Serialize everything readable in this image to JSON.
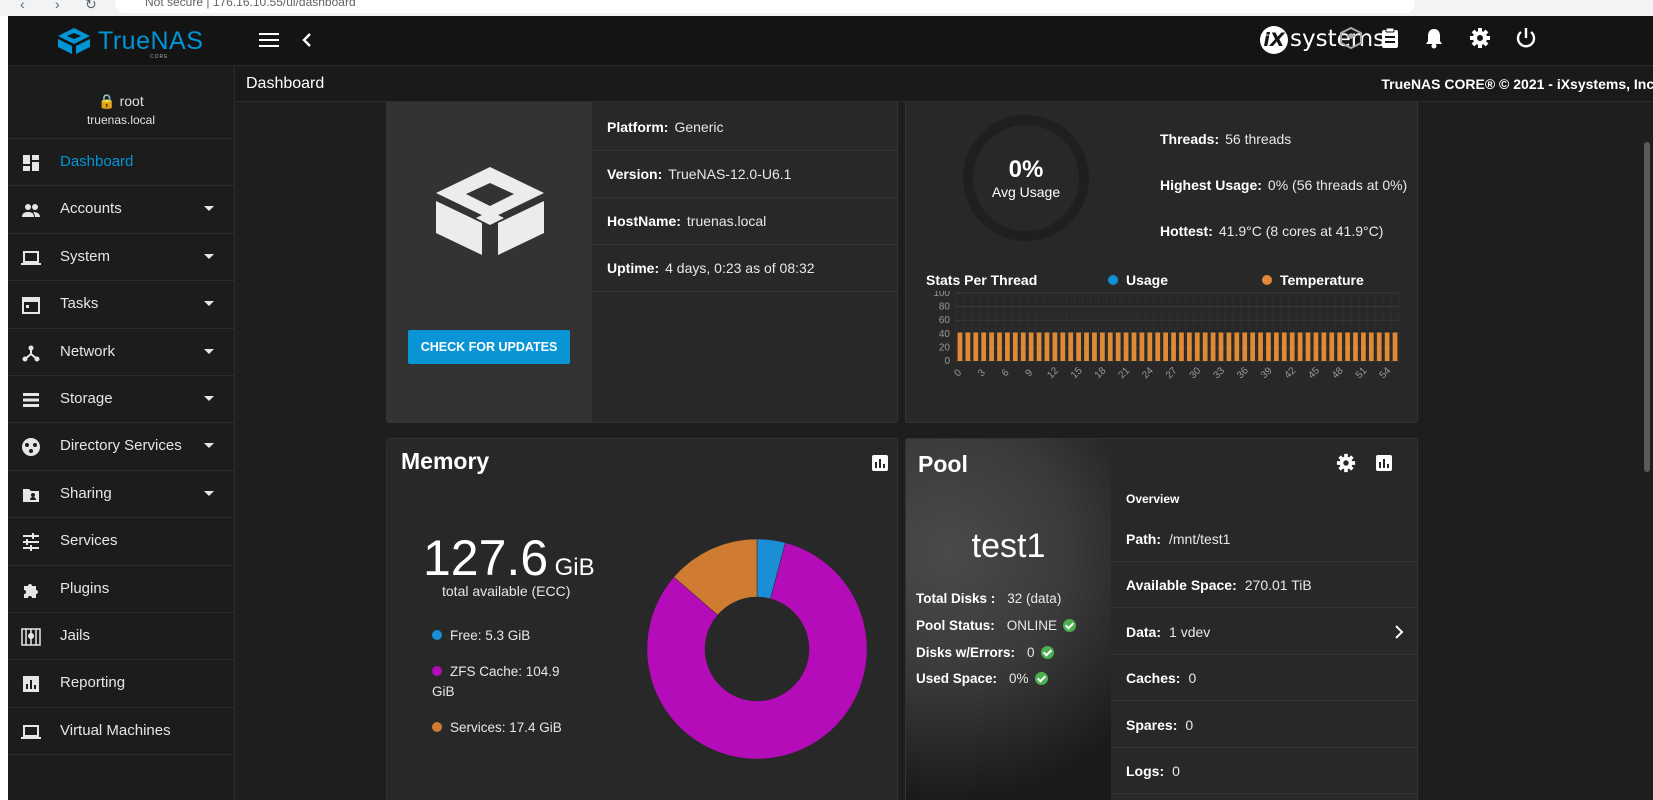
{
  "browser": {
    "security": "Not secure",
    "url": "176.16.10.55/ui/dashboard"
  },
  "topbar": {
    "brand": "TrueNAS",
    "brand_sub": "CORE",
    "vendor": "systems",
    "vendor_mark": "iX"
  },
  "subheader": {
    "title": "Dashboard",
    "copyright": "TrueNAS CORE® © 2021 - iXsystems, Inc."
  },
  "user": {
    "name": "root",
    "host": "truenas.local"
  },
  "sidebar": {
    "items": [
      {
        "label": "Dashboard",
        "icon": "dashboard-icon",
        "expandable": false,
        "active": true
      },
      {
        "label": "Accounts",
        "icon": "people-icon",
        "expandable": true
      },
      {
        "label": "System",
        "icon": "laptop-icon",
        "expandable": true
      },
      {
        "label": "Tasks",
        "icon": "calendar-icon",
        "expandable": true
      },
      {
        "label": "Network",
        "icon": "network-icon",
        "expandable": true
      },
      {
        "label": "Storage",
        "icon": "storage-icon",
        "expandable": true
      },
      {
        "label": "Directory Services",
        "icon": "directory-icon",
        "expandable": true
      },
      {
        "label": "Sharing",
        "icon": "folder-share-icon",
        "expandable": true
      },
      {
        "label": "Services",
        "icon": "tune-icon",
        "expandable": false
      },
      {
        "label": "Plugins",
        "icon": "puzzle-icon",
        "expandable": false
      },
      {
        "label": "Jails",
        "icon": "jail-icon",
        "expandable": false
      },
      {
        "label": "Reporting",
        "icon": "chart-icon",
        "expandable": false
      },
      {
        "label": "Virtual Machines",
        "icon": "laptop-icon",
        "expandable": false
      }
    ]
  },
  "sysinfo": {
    "update_button": "CHECK FOR UPDATES",
    "rows": [
      {
        "label": "Platform:",
        "value": "Generic"
      },
      {
        "label": "Version:",
        "value": "TrueNAS-12.0-U6.1"
      },
      {
        "label": "HostName:",
        "value": "truenas.local"
      },
      {
        "label": "Uptime:",
        "value": "4 days, 0:23 as of 08:32"
      }
    ]
  },
  "cpu": {
    "avg_value": "0%",
    "avg_label": "Avg Usage",
    "threads_label": "Threads:",
    "threads_value": "56 threads",
    "highest_label": "Highest Usage:",
    "highest_value": "0%  (56 threads at 0%)",
    "hottest_label": "Hottest:",
    "hottest_value": "41.9°C  (8 cores at 41.9°C)",
    "stats_title": "Stats Per Thread",
    "legend_usage": "Usage",
    "legend_temp": "Temperature",
    "colors": {
      "usage": "#0e8fd8",
      "temperature": "#e08a35"
    }
  },
  "chart_data": {
    "type": "bar",
    "title": "Stats Per Thread",
    "ylim": [
      0,
      100
    ],
    "yticks": [
      0,
      20,
      40,
      60,
      80,
      100
    ],
    "xticks": [
      0,
      3,
      6,
      9,
      12,
      15,
      18,
      21,
      24,
      27,
      30,
      33,
      36,
      39,
      42,
      45,
      48,
      51,
      54
    ],
    "categories_count": 56,
    "series": [
      {
        "name": "Usage",
        "color": "#0e8fd8",
        "values": [
          0,
          0,
          0,
          0,
          0,
          0,
          0,
          0,
          0,
          0,
          0,
          0,
          0,
          0,
          0,
          0,
          0,
          0,
          0,
          0,
          0,
          0,
          0,
          0,
          0,
          0,
          0,
          0,
          0,
          0,
          0,
          0,
          0,
          0,
          0,
          0,
          0,
          0,
          0,
          0,
          0,
          0,
          0,
          0,
          0,
          0,
          0,
          0,
          0,
          0,
          0,
          0,
          0,
          0,
          0,
          0
        ]
      },
      {
        "name": "Temperature",
        "color": "#e08a35",
        "values": [
          41.9,
          41.9,
          41.9,
          41.9,
          41.9,
          41.9,
          41.9,
          41.9,
          41.9,
          41.9,
          41.9,
          41.9,
          41.9,
          41.9,
          41.9,
          41.9,
          41.9,
          41.9,
          41.9,
          41.9,
          41.9,
          41.9,
          41.9,
          41.9,
          41.9,
          41.9,
          41.9,
          41.9,
          41.9,
          41.9,
          41.9,
          41.9,
          41.9,
          41.9,
          41.9,
          41.9,
          41.9,
          41.9,
          41.9,
          41.9,
          41.9,
          41.9,
          41.9,
          41.9,
          41.9,
          41.9,
          41.9,
          41.9,
          41.9,
          41.9,
          41.9,
          41.9,
          41.9,
          41.9,
          41.9,
          41.9
        ]
      }
    ]
  },
  "memory": {
    "title": "Memory",
    "total": "127.6",
    "unit": "GiB",
    "caption": "total available (ECC)",
    "legend": [
      {
        "label": "Free: 5.3 GiB",
        "color": "#1a8fd6",
        "value": 5.3
      },
      {
        "label": "ZFS Cache: 104.9 GiB",
        "color": "#b30cb8",
        "value": 104.9
      },
      {
        "label": "Services: 17.4 GiB",
        "color": "#cf7c32",
        "value": 17.4
      }
    ]
  },
  "pool": {
    "title": "Pool",
    "name": "test1",
    "total_disks_label": "Total Disks :",
    "total_disks_value": "32 (data)",
    "status_label": "Pool Status:",
    "status_value": "ONLINE",
    "errors_label": "Disks w/Errors:",
    "errors_value": "0",
    "used_label": "Used Space:",
    "used_value": "0%",
    "overview": "Overview",
    "rows": [
      {
        "label": "Path:",
        "value": "/mnt/test1"
      },
      {
        "label": "Available Space:",
        "value": "270.01 TiB"
      },
      {
        "label": "Data:",
        "value": "1 vdev"
      },
      {
        "label": "Caches:",
        "value": "0"
      },
      {
        "label": "Spares:",
        "value": "0"
      },
      {
        "label": "Logs:",
        "value": "0"
      }
    ]
  }
}
